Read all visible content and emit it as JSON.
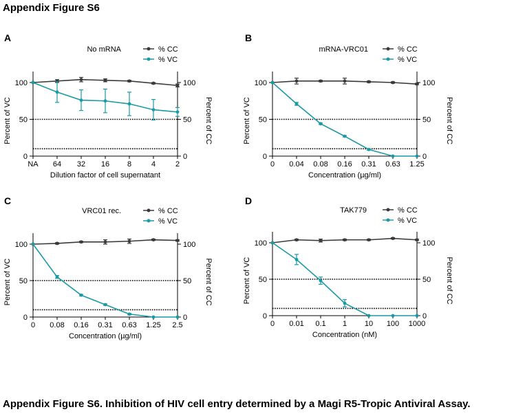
{
  "figure_title": "Appendix Figure S6",
  "caption": "Appendix Figure S6. Inhibition of HIV cell entry determined by a Magi R5-Tropic Antiviral Assay.",
  "colors": {
    "cc": "#3a3a3a",
    "vc": "#1a9aa6",
    "axis": "#000000"
  },
  "chart_data": [
    {
      "panel": "A",
      "type": "line",
      "title": "No mRNA",
      "xlabel": "Dilution factor of cell supernatant",
      "ylabel_left": "Percent of VC",
      "ylabel_right": "Percent of CC",
      "x": [
        "NA",
        "64",
        "32",
        "16",
        "8",
        "4",
        "2"
      ],
      "ylim": [
        0,
        110
      ],
      "yticks": [
        0,
        50,
        100
      ],
      "reference_lines": [
        50,
        10
      ],
      "legend": "top-right",
      "series": [
        {
          "name": "% CC",
          "values": [
            100,
            102,
            104,
            103,
            102,
            99,
            96
          ],
          "errors": [
            0,
            2,
            3,
            2,
            1,
            1,
            2
          ]
        },
        {
          "name": "% VC",
          "values": [
            100,
            87,
            76,
            75,
            71,
            63,
            60
          ],
          "errors": [
            0,
            14,
            14,
            16,
            16,
            14,
            6
          ]
        }
      ]
    },
    {
      "panel": "B",
      "type": "line",
      "title": "mRNA-VRC01",
      "xlabel": "Concentration (µg/ml)",
      "ylabel_left": "Percent of VC",
      "ylabel_right": "Percent of CC",
      "x": [
        "0",
        "0.04",
        "0.08",
        "0.16",
        "0.31",
        "0.63",
        "1.25"
      ],
      "ylim": [
        0,
        110
      ],
      "yticks": [
        0,
        50,
        100
      ],
      "reference_lines": [
        50,
        10
      ],
      "legend": "top-right",
      "series": [
        {
          "name": "% CC",
          "values": [
            100,
            102,
            102,
            102,
            101,
            100,
            98
          ],
          "errors": [
            0,
            4,
            1,
            4,
            1,
            1,
            1
          ]
        },
        {
          "name": "% VC",
          "values": [
            100,
            71,
            44,
            27,
            9,
            0,
            0
          ],
          "errors": [
            0,
            2,
            1,
            1,
            1,
            0,
            0
          ]
        }
      ]
    },
    {
      "panel": "C",
      "type": "line",
      "title": "VRC01 rec.",
      "xlabel": "Concentration (µg/ml)",
      "ylabel_left": "Percent of VC",
      "ylabel_right": "Percent of CC",
      "x": [
        "0",
        "0.08",
        "0.16",
        "0.31",
        "0.63",
        "1.25",
        "2.5"
      ],
      "ylim": [
        0,
        110
      ],
      "yticks": [
        0,
        50,
        100
      ],
      "reference_lines": [
        50,
        10
      ],
      "legend": "top-right",
      "series": [
        {
          "name": "% CC",
          "values": [
            100,
            101,
            103,
            103,
            104,
            106,
            105
          ],
          "errors": [
            0,
            1,
            1,
            3,
            3,
            1,
            1
          ]
        },
        {
          "name": "% VC",
          "values": [
            100,
            55,
            30,
            17,
            4,
            0,
            0
          ],
          "errors": [
            0,
            2,
            1,
            1,
            1,
            0,
            0
          ]
        }
      ]
    },
    {
      "panel": "D",
      "type": "line",
      "title": "TAK779",
      "xlabel": "Concentration (nM)",
      "ylabel_left": "Percent of VC",
      "ylabel_right": "Percent of CC",
      "x": [
        "0",
        "0.01",
        "0.1",
        "1",
        "10",
        "100",
        "1000"
      ],
      "ylim": [
        0,
        110
      ],
      "yticks": [
        0,
        50,
        100
      ],
      "reference_lines": [
        50,
        10
      ],
      "legend": "top-right",
      "series": [
        {
          "name": "% CC",
          "values": [
            100,
            104,
            103,
            104,
            104,
            106,
            104
          ],
          "errors": [
            0,
            1,
            2,
            1,
            1,
            1,
            1
          ]
        },
        {
          "name": "% VC",
          "values": [
            100,
            77,
            48,
            17,
            0,
            0,
            0
          ],
          "errors": [
            0,
            7,
            5,
            5,
            0,
            0,
            0
          ]
        }
      ]
    }
  ]
}
